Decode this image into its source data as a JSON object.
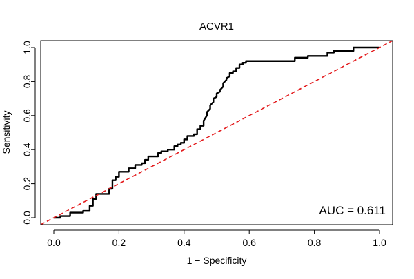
{
  "chart_data": {
    "type": "line",
    "title": "ACVR1",
    "xlabel": "1 − Specificity",
    "ylabel": "Sensitivity",
    "xlim": [
      0,
      1
    ],
    "ylim": [
      0,
      1
    ],
    "x_ticks": [
      "0.0",
      "0.2",
      "0.4",
      "0.6",
      "0.8",
      "1.0"
    ],
    "y_ticks": [
      "0.0",
      "0.2",
      "0.4",
      "0.6",
      "0.8",
      "1.0"
    ],
    "annotation": "AUC = 0.611",
    "grid": false,
    "series": [
      {
        "color": "#000000",
        "style": "solid",
        "points": [
          [
            0.0,
            0.0
          ],
          [
            0.02,
            0.0
          ],
          [
            0.02,
            0.01
          ],
          [
            0.05,
            0.01
          ],
          [
            0.05,
            0.03
          ],
          [
            0.09,
            0.03
          ],
          [
            0.09,
            0.04
          ],
          [
            0.11,
            0.04
          ],
          [
            0.11,
            0.07
          ],
          [
            0.12,
            0.07
          ],
          [
            0.12,
            0.11
          ],
          [
            0.13,
            0.11
          ],
          [
            0.13,
            0.14
          ],
          [
            0.17,
            0.14
          ],
          [
            0.17,
            0.17
          ],
          [
            0.18,
            0.17
          ],
          [
            0.18,
            0.22
          ],
          [
            0.19,
            0.22
          ],
          [
            0.19,
            0.24
          ],
          [
            0.2,
            0.24
          ],
          [
            0.2,
            0.27
          ],
          [
            0.23,
            0.27
          ],
          [
            0.23,
            0.29
          ],
          [
            0.25,
            0.29
          ],
          [
            0.25,
            0.31
          ],
          [
            0.27,
            0.31
          ],
          [
            0.27,
            0.32
          ],
          [
            0.28,
            0.32
          ],
          [
            0.28,
            0.34
          ],
          [
            0.29,
            0.34
          ],
          [
            0.29,
            0.36
          ],
          [
            0.32,
            0.36
          ],
          [
            0.32,
            0.38
          ],
          [
            0.33,
            0.38
          ],
          [
            0.33,
            0.39
          ],
          [
            0.35,
            0.39
          ],
          [
            0.35,
            0.4
          ],
          [
            0.37,
            0.4
          ],
          [
            0.37,
            0.42
          ],
          [
            0.38,
            0.42
          ],
          [
            0.38,
            0.43
          ],
          [
            0.39,
            0.43
          ],
          [
            0.39,
            0.44
          ],
          [
            0.4,
            0.44
          ],
          [
            0.4,
            0.46
          ],
          [
            0.41,
            0.46
          ],
          [
            0.41,
            0.48
          ],
          [
            0.43,
            0.48
          ],
          [
            0.43,
            0.49
          ],
          [
            0.44,
            0.49
          ],
          [
            0.44,
            0.52
          ],
          [
            0.45,
            0.52
          ],
          [
            0.45,
            0.54
          ],
          [
            0.46,
            0.54
          ],
          [
            0.46,
            0.57
          ],
          [
            0.47,
            0.6
          ],
          [
            0.47,
            0.62
          ],
          [
            0.48,
            0.64
          ],
          [
            0.48,
            0.66
          ],
          [
            0.49,
            0.68
          ],
          [
            0.49,
            0.7
          ],
          [
            0.5,
            0.71
          ],
          [
            0.5,
            0.73
          ],
          [
            0.51,
            0.74
          ],
          [
            0.51,
            0.75
          ],
          [
            0.52,
            0.77
          ],
          [
            0.52,
            0.79
          ],
          [
            0.53,
            0.81
          ],
          [
            0.53,
            0.82
          ],
          [
            0.54,
            0.83
          ],
          [
            0.54,
            0.85
          ],
          [
            0.55,
            0.85
          ],
          [
            0.55,
            0.86
          ],
          [
            0.56,
            0.86
          ],
          [
            0.56,
            0.88
          ],
          [
            0.57,
            0.88
          ],
          [
            0.57,
            0.9
          ],
          [
            0.58,
            0.9
          ],
          [
            0.58,
            0.91
          ],
          [
            0.59,
            0.91
          ],
          [
            0.59,
            0.92
          ],
          [
            0.74,
            0.92
          ],
          [
            0.74,
            0.94
          ],
          [
            0.78,
            0.94
          ],
          [
            0.78,
            0.95
          ],
          [
            0.84,
            0.95
          ],
          [
            0.84,
            0.97
          ],
          [
            0.86,
            0.97
          ],
          [
            0.86,
            0.98
          ],
          [
            0.92,
            0.98
          ],
          [
            0.92,
            1.0
          ],
          [
            1.0,
            1.0
          ]
        ]
      },
      {
        "color": "#e31a1c",
        "style": "dashed",
        "points": [
          [
            -0.04,
            -0.04
          ],
          [
            1.04,
            1.04
          ]
        ]
      }
    ]
  }
}
